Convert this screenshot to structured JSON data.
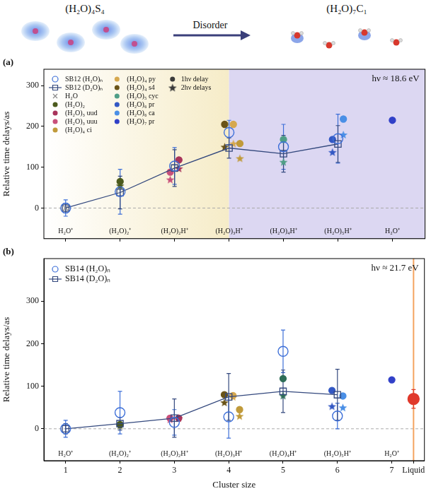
{
  "header": {
    "left": "(H₂O)₄S₄",
    "arrow_label": "Disorder",
    "right": "(H₂O)₇C₁"
  },
  "chart_data": [
    {
      "type": "scatter",
      "panel_label": "(a)",
      "y_label": "Relative time delays/as",
      "energy_label": "hν ≈ 18.6 eV",
      "xlim": [
        0.6,
        7.6
      ],
      "xticks": [
        1,
        2,
        3,
        4,
        5,
        6,
        7
      ],
      "ylim": [
        -75,
        340
      ],
      "yticks": [
        0,
        100,
        200,
        300
      ],
      "grid": false,
      "tick_labels": "y",
      "legend": "top-left",
      "regions": [
        {
          "from": 0.6,
          "to": 4,
          "colors": [
            "#ffffff",
            "#f6ecc8"
          ]
        },
        {
          "from": 4,
          "to": 7.6,
          "colors": [
            "#dcd7f2",
            "#dcd7f2"
          ]
        }
      ],
      "hlines": [
        {
          "y": 0,
          "color": "#aaaaaa",
          "line_style": "dashed"
        }
      ],
      "annotations": [
        {
          "x": 1,
          "text": "H₂O⁺"
        },
        {
          "x": 2,
          "text": "(H₂O)₂⁺"
        },
        {
          "x": 3,
          "text": "(H₂O)₂H⁺"
        },
        {
          "x": 4,
          "text": "(H₂O)₃H⁺"
        },
        {
          "x": 5,
          "text": "(H₂O)₄H⁺"
        },
        {
          "x": 6,
          "text": "(H₂O)₅H⁺"
        },
        {
          "x": 7,
          "text": "H₂O⁺"
        }
      ],
      "marker_legend": [
        {
          "label": "1hν delay",
          "marker": "circle",
          "color": "#3a3a3a"
        },
        {
          "label": "2hν delays",
          "marker": "star",
          "color": "#3a3a3a"
        }
      ],
      "series": [
        {
          "name": "SB12 (H₂O)ₙ",
          "marker": "circle_open",
          "color": "#3d6fd8",
          "x": [
            1,
            2,
            3,
            4,
            5,
            6
          ],
          "values": [
            0,
            40,
            103,
            185,
            150,
            170
          ],
          "error": [
            20,
            55,
            45,
            30,
            55,
            60
          ]
        },
        {
          "name": "SB12 (D₂O)ₙ",
          "type": "line",
          "marker": "square_open",
          "color": "#34497e",
          "x": [
            1,
            2,
            3,
            4,
            5,
            6
          ],
          "values": [
            0,
            38,
            98,
            147,
            133,
            157
          ],
          "error": [
            12,
            40,
            45,
            25,
            45,
            45
          ]
        },
        {
          "name": "H₂O",
          "marker": "x",
          "color": "#8a8a8a",
          "x": [
            1
          ],
          "values": [
            0
          ]
        },
        {
          "name": "(H₂O)₂",
          "marker": "circle",
          "color": "#4b5a1c",
          "x": [
            2
          ],
          "values": [
            65
          ],
          "values_2hv": [
            55
          ]
        },
        {
          "name": "(H₂O)₃ uud",
          "marker": "circle",
          "color": "#a8345a",
          "x": [
            3.08
          ],
          "values": [
            118
          ],
          "values_2hv": [
            97
          ]
        },
        {
          "name": "(H₂O)₃ uuu",
          "marker": "circle",
          "color": "#c8507a",
          "x": [
            2.92
          ],
          "values": [
            88
          ],
          "values_2hv": [
            70
          ]
        },
        {
          "name": "(H₂O)₄ ci",
          "marker": "circle",
          "color": "#c09a3a",
          "x": [
            4.2
          ],
          "values": [
            158
          ],
          "values_2hv": [
            122
          ]
        },
        {
          "name": "(H₂O)₄ py",
          "marker": "circle",
          "color": "#d6a84e",
          "x": [
            4.08
          ],
          "values": [
            205
          ],
          "values_2hv": [
            158
          ]
        },
        {
          "name": "(H₂O)₄ s4",
          "marker": "circle",
          "color": "#6a5418",
          "x": [
            3.92
          ],
          "values": [
            205
          ],
          "values_2hv": [
            150
          ]
        },
        {
          "name": "(H₂O)₅ cyc",
          "marker": "circle",
          "color": "#4f9e86",
          "x": [
            5
          ],
          "values": [
            168
          ],
          "values_2hv": [
            113
          ]
        },
        {
          "name": "(H₂O)₆ pr",
          "marker": "circle",
          "color": "#3358c4",
          "x": [
            5.9
          ],
          "values": [
            168
          ],
          "values_2hv": [
            137
          ]
        },
        {
          "name": "(H₂O)₆ ca",
          "marker": "circle",
          "color": "#4a8fe6",
          "x": [
            6.1
          ],
          "values": [
            218
          ],
          "values_2hv": [
            180
          ]
        },
        {
          "name": "(H₂O)₇ pr",
          "marker": "circle",
          "color": "#3140c8",
          "x": [
            7
          ],
          "values": [
            215
          ]
        }
      ]
    },
    {
      "type": "scatter",
      "panel_label": "(b)",
      "y_label": "Relative time delays/as",
      "x_label": "Cluster size",
      "energy_label": "hν ≈ 21.7 eV",
      "xlim": [
        0.6,
        7.6
      ],
      "xticks": [
        1,
        2,
        3,
        4,
        5,
        6,
        7,
        {
          "value": 7.4,
          "label": "Liquid"
        }
      ],
      "ylim": [
        -75,
        400
      ],
      "yticks": [
        0,
        100,
        200,
        300
      ],
      "grid": false,
      "legend": "top-left",
      "hlines": [
        {
          "y": 0,
          "color": "#aaaaaa",
          "line_style": "dashed"
        }
      ],
      "vlines": [
        {
          "x": 7.4,
          "color": "#f4a460"
        }
      ],
      "annotations": [
        {
          "x": 1,
          "text": "H₂O⁺"
        },
        {
          "x": 2,
          "text": "(H₂O)₂⁺"
        },
        {
          "x": 3,
          "text": "(H₂O)₂H⁺"
        },
        {
          "x": 4,
          "text": "(H₂O)₃H⁺"
        },
        {
          "x": 5,
          "text": "(H₂O)₄H⁺"
        },
        {
          "x": 6,
          "text": "(H₂O)₅H⁺"
        },
        {
          "x": 7,
          "text": "H₂O⁺"
        }
      ],
      "series": [
        {
          "name": "SB14 (H₂O)ₙ",
          "marker": "circle_open",
          "color": "#3d6fd8",
          "x": [
            1,
            2,
            3,
            4,
            5,
            6
          ],
          "values": [
            0,
            38,
            15,
            28,
            182,
            30
          ],
          "error": [
            20,
            50,
            30,
            50,
            50,
            30
          ]
        },
        {
          "name": "SB14 (D₂O)ₙ",
          "type": "line",
          "marker": "square_open",
          "color": "#34497e",
          "x": [
            1,
            2,
            3,
            4,
            5,
            6
          ],
          "values": [
            0,
            12,
            25,
            75,
            88,
            80
          ],
          "error": [
            12,
            15,
            45,
            55,
            50,
            60
          ]
        },
        {
          "marker": "circle",
          "color": "#4b5a1c",
          "x": [
            2
          ],
          "values": [
            10
          ],
          "values_2hv": [
            8
          ]
        },
        {
          "marker": "circle",
          "color": "#a8345a",
          "x": [
            3.08
          ],
          "values": [
            25
          ],
          "values_2hv": [
            25
          ]
        },
        {
          "marker": "circle",
          "color": "#c8507a",
          "x": [
            2.92
          ],
          "values": [
            25
          ],
          "values_2hv": [
            22
          ]
        },
        {
          "marker": "circle",
          "color": "#c09a3a",
          "x": [
            4.2
          ],
          "values": [
            45
          ],
          "values_2hv": [
            30
          ]
        },
        {
          "marker": "circle",
          "color": "#d6a84e",
          "x": [
            4.08
          ],
          "values": [
            78
          ],
          "values_2hv": [
            75
          ]
        },
        {
          "marker": "circle",
          "color": "#6a5418",
          "x": [
            3.92
          ],
          "values": [
            80
          ],
          "values_2hv": [
            62
          ]
        },
        {
          "marker": "circle",
          "color": "#2f6e58",
          "x": [
            5
          ],
          "values": [
            118
          ],
          "values_2hv": [
            78
          ]
        },
        {
          "marker": "circle",
          "color": "#3358c4",
          "x": [
            5.9
          ],
          "values": [
            90
          ],
          "values_2hv": [
            53
          ]
        },
        {
          "marker": "circle",
          "color": "#4a8fe6",
          "x": [
            6.1
          ],
          "values": [
            77
          ],
          "values_2hv": [
            50
          ]
        },
        {
          "marker": "circle",
          "color": "#3140c8",
          "x": [
            7
          ],
          "values": [
            115
          ]
        },
        {
          "marker": "large_circle",
          "color": "#e0392b",
          "x": [
            7.4
          ],
          "values": [
            70
          ],
          "error": [
            22
          ]
        }
      ]
    }
  ]
}
